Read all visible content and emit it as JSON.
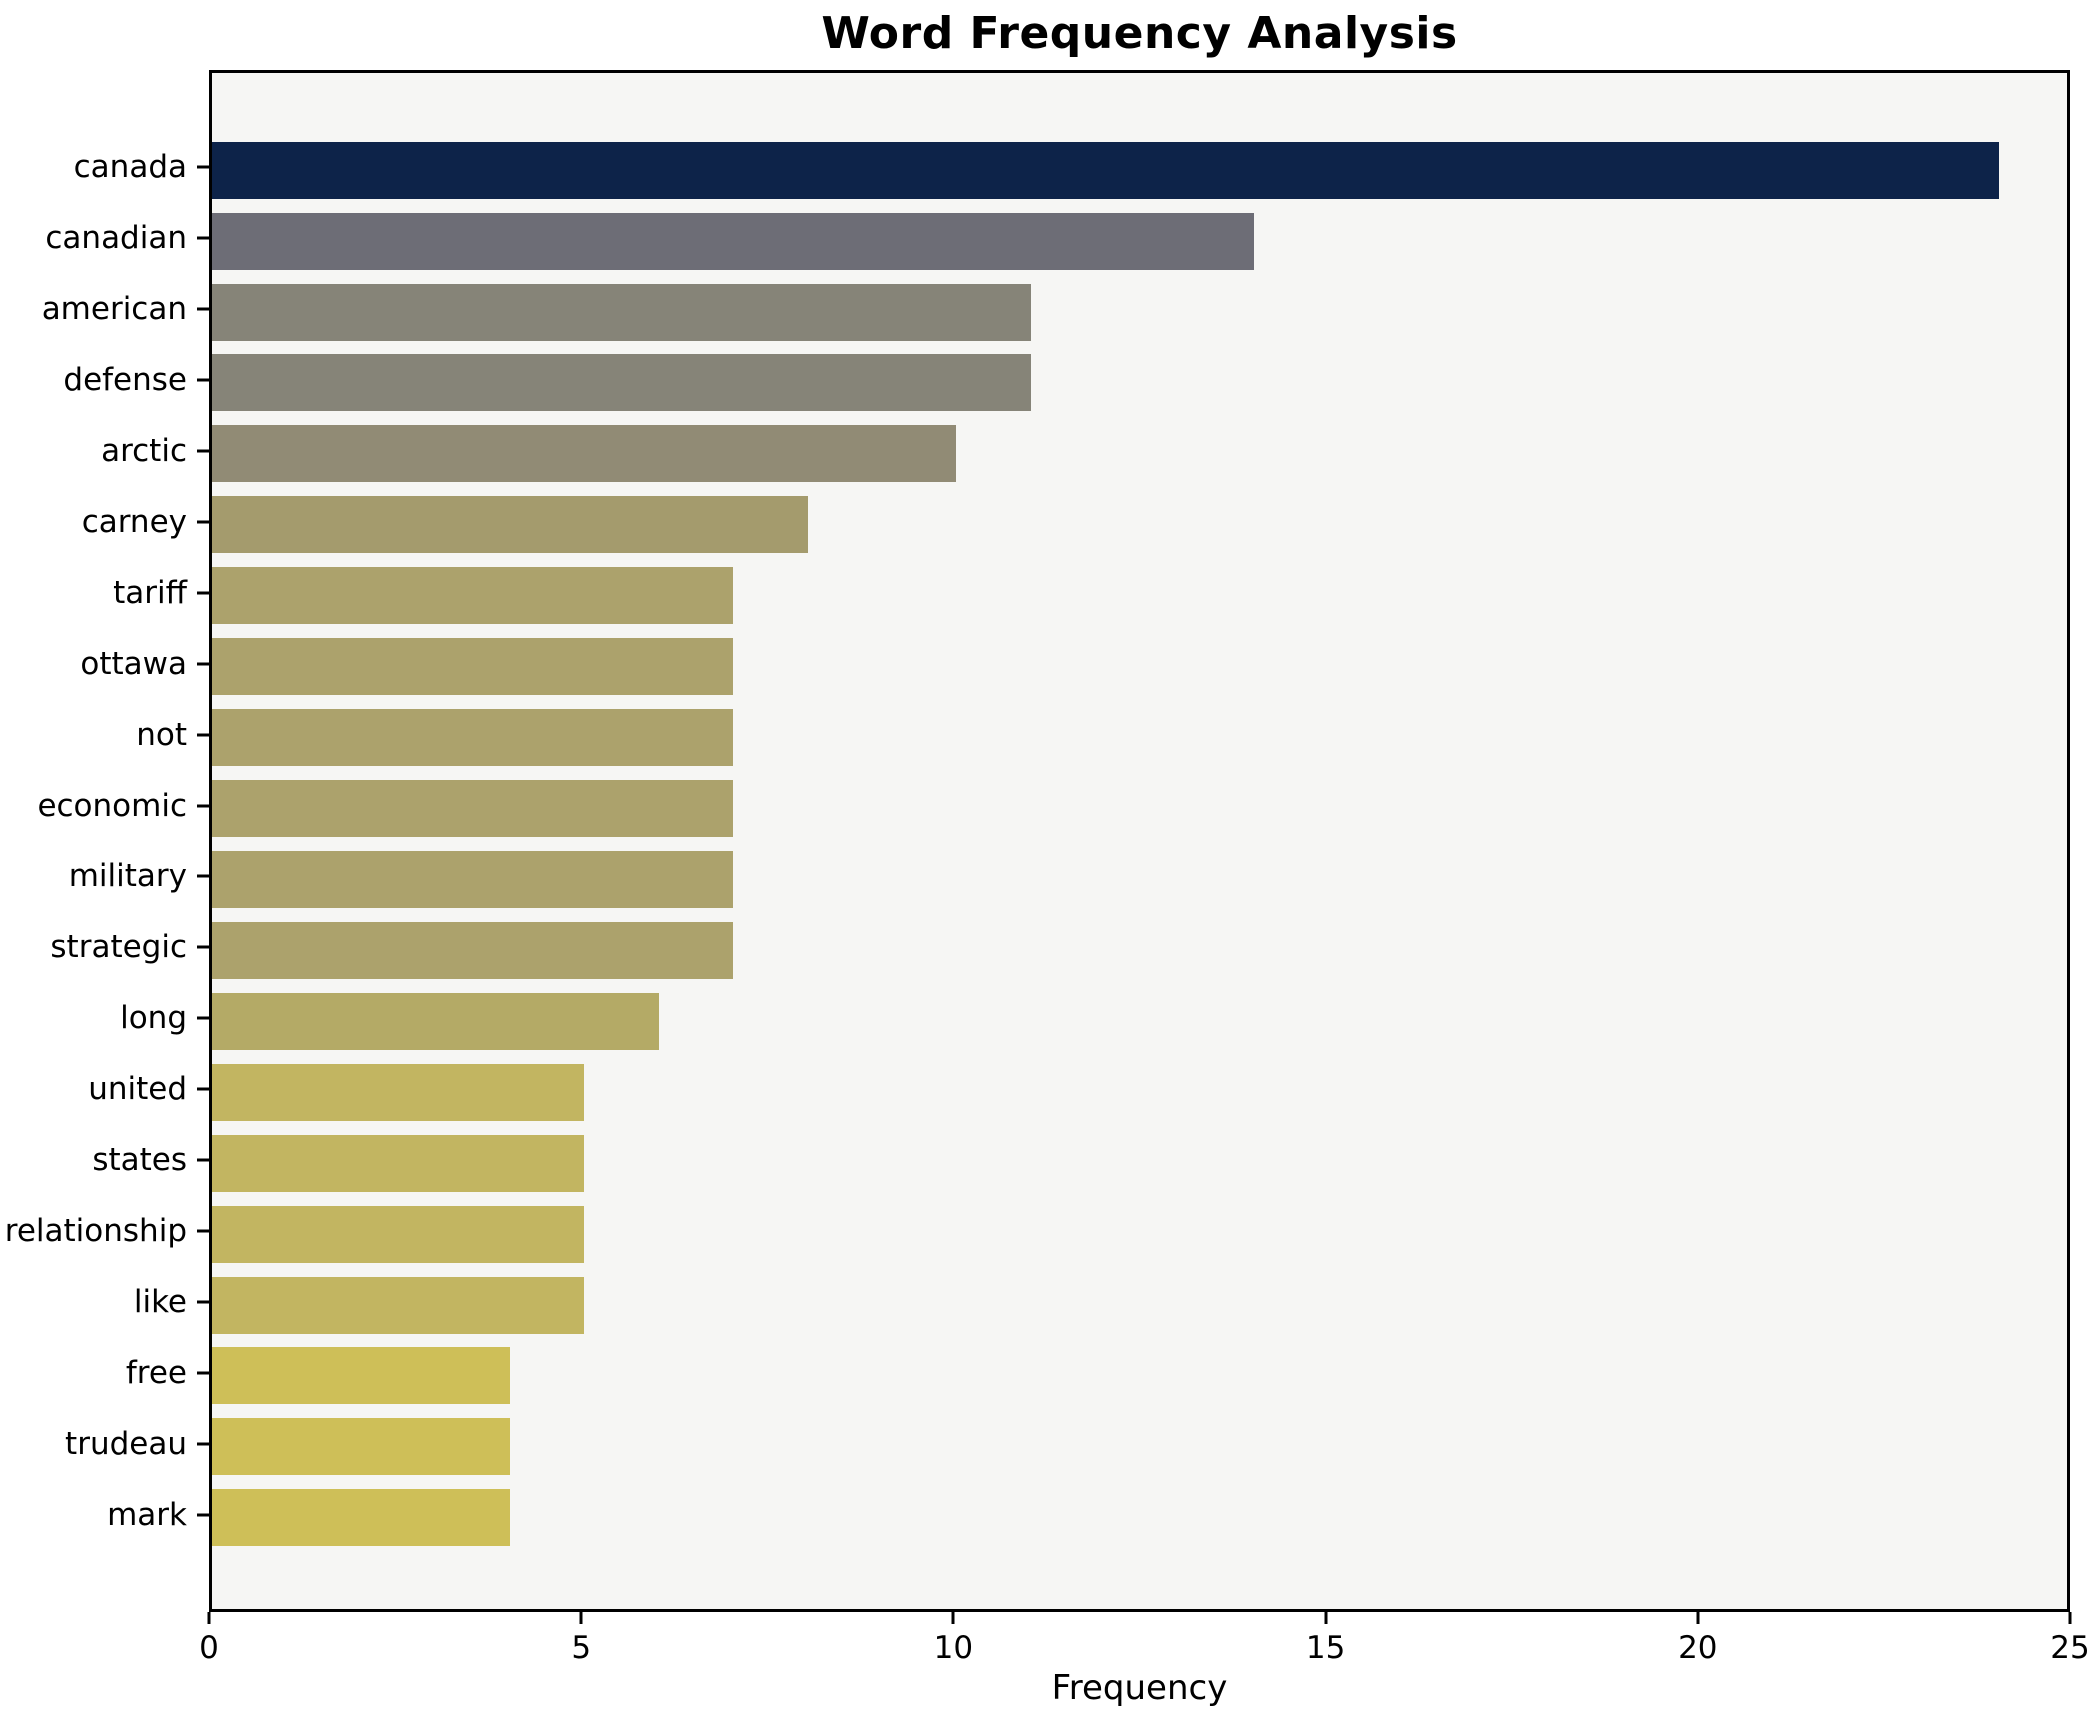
{
  "chart_data": {
    "type": "bar",
    "orientation": "horizontal",
    "title": "Word Frequency Analysis",
    "xlabel": "Frequency",
    "ylabel": "",
    "xlim": [
      0,
      25
    ],
    "xticks": [
      0,
      5,
      10,
      15,
      20,
      25
    ],
    "grid": false,
    "legend": null,
    "plot_background": "#f6f6f4",
    "figure_background": "#ffffff",
    "spine_color": "#000000",
    "categories": [
      "canada",
      "canadian",
      "american",
      "defense",
      "arctic",
      "carney",
      "tariff",
      "ottawa",
      "not",
      "economic",
      "military",
      "strategic",
      "long",
      "united",
      "states",
      "relationship",
      "like",
      "free",
      "trudeau",
      "mark"
    ],
    "values": [
      24,
      14,
      11,
      11,
      10,
      8,
      7,
      7,
      7,
      7,
      7,
      7,
      6,
      5,
      5,
      5,
      5,
      4,
      4,
      4
    ],
    "bar_colors": [
      "#0d2349",
      "#6d6d76",
      "#868478",
      "#868478",
      "#918b75",
      "#a49b6d",
      "#aca26c",
      "#aca26c",
      "#aca26c",
      "#aca26c",
      "#aca26c",
      "#aca26c",
      "#b4aa66",
      "#c2b561",
      "#c2b561",
      "#c2b561",
      "#c2b561",
      "#cebf58",
      "#cebf58",
      "#cebf58"
    ]
  }
}
